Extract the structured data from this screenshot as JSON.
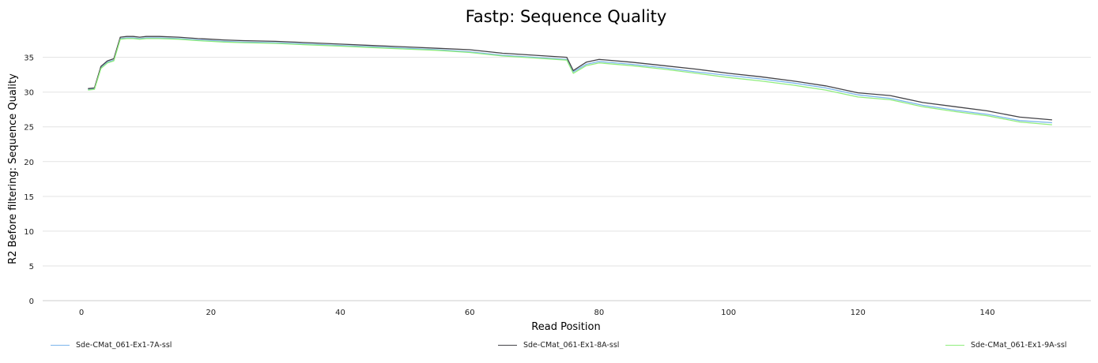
{
  "chart_data": {
    "type": "line",
    "title": "Fastp: Sequence Quality",
    "xlabel": "Read Position",
    "ylabel": "R2 Before filtering: Sequence Quality",
    "xlim": [
      -6,
      156
    ],
    "ylim": [
      0,
      39.5
    ],
    "x_ticks": [
      0,
      20,
      40,
      60,
      80,
      100,
      120,
      140
    ],
    "y_ticks": [
      0,
      5,
      10,
      15,
      20,
      25,
      30,
      35
    ],
    "grid": true,
    "legend_position": "bottom",
    "series": [
      {
        "name": "Sde-CMat_061-Ex1-7A-ssl",
        "color": "#7cb5ec",
        "x": [
          1,
          2,
          3,
          4,
          5,
          6,
          7,
          8,
          9,
          10,
          12,
          15,
          18,
          20,
          22,
          25,
          30,
          35,
          40,
          45,
          50,
          55,
          60,
          65,
          70,
          75,
          76,
          78,
          80,
          85,
          90,
          95,
          100,
          105,
          110,
          115,
          120,
          125,
          130,
          135,
          140,
          145,
          150
        ],
        "y": [
          30.4,
          30.5,
          33.5,
          34.3,
          34.6,
          37.7,
          37.8,
          37.8,
          37.7,
          37.8,
          37.8,
          37.7,
          37.5,
          37.4,
          37.3,
          37.2,
          37.1,
          36.9,
          36.7,
          36.5,
          36.3,
          36.1,
          35.8,
          35.3,
          35.0,
          34.7,
          32.9,
          34.0,
          34.4,
          34.0,
          33.5,
          32.9,
          32.4,
          31.9,
          31.3,
          30.6,
          29.6,
          29.1,
          28.1,
          27.4,
          26.8,
          25.9,
          25.6
        ]
      },
      {
        "name": "Sde-CMat_061-Ex1-8A-ssl",
        "color": "#434348",
        "x": [
          1,
          2,
          3,
          4,
          5,
          6,
          7,
          8,
          9,
          10,
          12,
          15,
          18,
          20,
          22,
          25,
          30,
          35,
          40,
          45,
          50,
          55,
          60,
          65,
          70,
          75,
          76,
          78,
          80,
          85,
          90,
          95,
          100,
          105,
          110,
          115,
          120,
          125,
          130,
          135,
          140,
          145,
          150
        ],
        "y": [
          30.5,
          30.6,
          33.7,
          34.5,
          34.8,
          37.9,
          38.0,
          38.0,
          37.9,
          38.0,
          38.0,
          37.9,
          37.7,
          37.6,
          37.5,
          37.4,
          37.3,
          37.1,
          36.9,
          36.7,
          36.5,
          36.3,
          36.1,
          35.6,
          35.3,
          35.0,
          33.1,
          34.3,
          34.7,
          34.3,
          33.8,
          33.3,
          32.7,
          32.2,
          31.6,
          30.9,
          29.9,
          29.5,
          28.5,
          27.9,
          27.3,
          26.4,
          26.0
        ]
      },
      {
        "name": "Sde-CMat_061-Ex1-9A-ssl",
        "color": "#90ed7d",
        "x": [
          1,
          2,
          3,
          4,
          5,
          6,
          7,
          8,
          9,
          10,
          12,
          15,
          18,
          20,
          22,
          25,
          30,
          35,
          40,
          45,
          50,
          55,
          60,
          65,
          70,
          75,
          76,
          78,
          80,
          85,
          90,
          95,
          100,
          105,
          110,
          115,
          120,
          125,
          130,
          135,
          140,
          145,
          150
        ],
        "y": [
          30.3,
          30.4,
          33.4,
          34.2,
          34.5,
          37.6,
          37.7,
          37.7,
          37.6,
          37.7,
          37.7,
          37.6,
          37.4,
          37.3,
          37.2,
          37.1,
          37.0,
          36.8,
          36.6,
          36.4,
          36.2,
          36.0,
          35.7,
          35.2,
          34.9,
          34.6,
          32.7,
          33.8,
          34.2,
          33.8,
          33.3,
          32.7,
          32.1,
          31.6,
          31.0,
          30.3,
          29.3,
          28.9,
          27.9,
          27.2,
          26.6,
          25.7,
          25.3
        ]
      }
    ]
  }
}
